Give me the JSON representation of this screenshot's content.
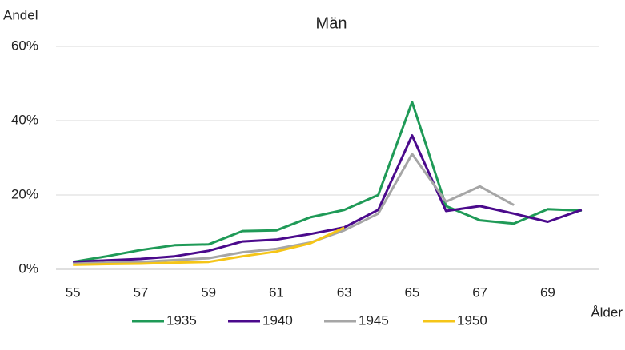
{
  "chart_data": {
    "type": "line",
    "title": "Män",
    "y_label": "Andel",
    "x_label": "Ålder",
    "categories": [
      "55",
      null,
      "57",
      null,
      "59",
      null,
      "61",
      null,
      "63",
      null,
      "65",
      null,
      "67",
      null,
      "69",
      null
    ],
    "series": [
      {
        "name": "1935",
        "color": "#1f9a57",
        "values": [
          2.0,
          3.5,
          5.2,
          6.5,
          6.7,
          10.3,
          10.5,
          14.0,
          16.0,
          20.0,
          45.0,
          17.0,
          13.2,
          12.3,
          16.2,
          15.8
        ]
      },
      {
        "name": "1940",
        "color": "#4b0a8c",
        "values": [
          2.0,
          2.4,
          2.8,
          3.5,
          5.0,
          7.5,
          8.0,
          9.5,
          11.3,
          16.0,
          36.0,
          15.7,
          17.0,
          15.0,
          12.8,
          16.0
        ]
      },
      {
        "name": "1945",
        "color": "#a6a6a6",
        "values": [
          1.5,
          1.8,
          2.0,
          2.5,
          3.0,
          4.6,
          5.5,
          7.2,
          10.5,
          15.0,
          31.0,
          18.2,
          22.3,
          17.3,
          null,
          null
        ]
      },
      {
        "name": "1950",
        "color": "#f5c518",
        "values": [
          1.2,
          1.4,
          1.5,
          1.8,
          2.0,
          3.5,
          4.8,
          7.0,
          11.2,
          null,
          null,
          null,
          null,
          null,
          null,
          null
        ]
      }
    ],
    "ylim": [
      0,
      60
    ],
    "yticks": [
      {
        "value": 0,
        "label": "0%"
      },
      {
        "value": 20,
        "label": "20%"
      },
      {
        "value": 40,
        "label": "40%"
      },
      {
        "value": 60,
        "label": "60%"
      }
    ],
    "grid": true,
    "legend": "bottom"
  }
}
